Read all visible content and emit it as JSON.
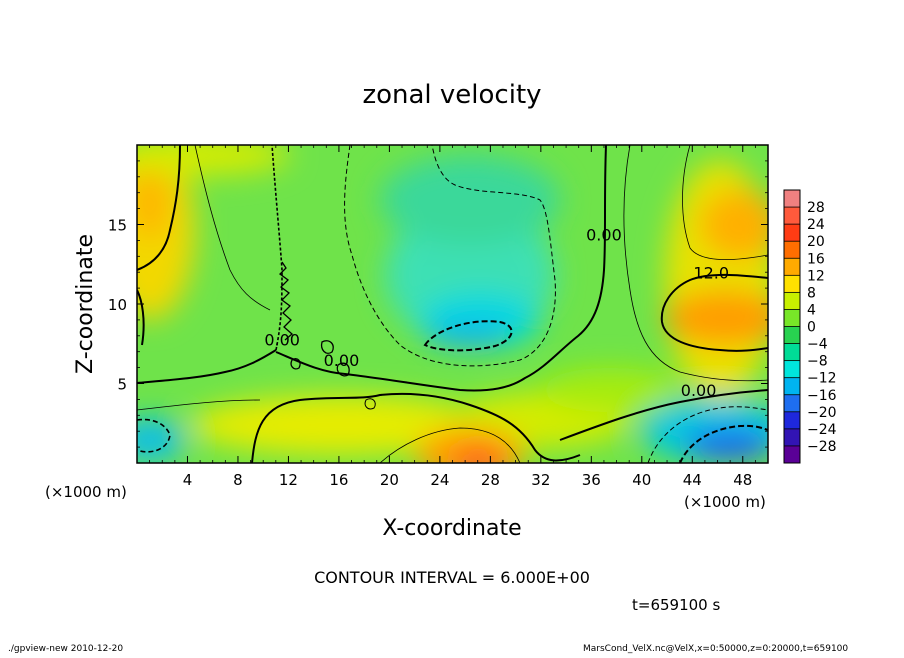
{
  "chart_data": {
    "type": "heatmap",
    "title": "zonal velocity",
    "xlabel": "X-coordinate",
    "ylabel": "Z-coordinate",
    "x_unit": "(×1000 m)",
    "x_unit_right": "(×1000 m)",
    "xlim": [
      0,
      50
    ],
    "ylim": [
      0,
      20
    ],
    "x_ticks": [
      4,
      8,
      12,
      16,
      20,
      24,
      28,
      32,
      36,
      40,
      44,
      48
    ],
    "y_ticks": [
      5,
      10,
      15
    ],
    "colorbar": {
      "ticks": [
        28,
        24,
        20,
        16,
        12,
        8,
        4,
        0,
        -4,
        -8,
        -12,
        -16,
        -20,
        -24,
        -28
      ],
      "colors": [
        "#f08080",
        "#ff5a3c",
        "#ff3c14",
        "#ff6e00",
        "#ffaa00",
        "#ffe100",
        "#c8f000",
        "#78e628",
        "#28d250",
        "#00dc96",
        "#00e6dc",
        "#00b4f0",
        "#1e6ef0",
        "#1e28dc",
        "#3214b4",
        "#5a0096"
      ]
    },
    "contour_labels": [
      {
        "text": "0.00",
        "x": 11.5,
        "z": 7.4
      },
      {
        "text": "0.00",
        "x": 16.2,
        "z": 6.1
      },
      {
        "text": "0.00",
        "x": 37.0,
        "z": 14.0
      },
      {
        "text": "12.0",
        "x": 45.5,
        "z": 11.6
      },
      {
        "text": "0.00",
        "x": 44.5,
        "z": 4.2
      }
    ],
    "contour_interval_text": "CONTOUR INTERVAL = 6.000E+00",
    "time_text": "t=659100 s"
  },
  "footer": {
    "left": "./gpview-new   2010-12-20",
    "right": "MarsCond_VelX.nc@VelX,x=0:50000,z=0:20000,t=659100"
  }
}
